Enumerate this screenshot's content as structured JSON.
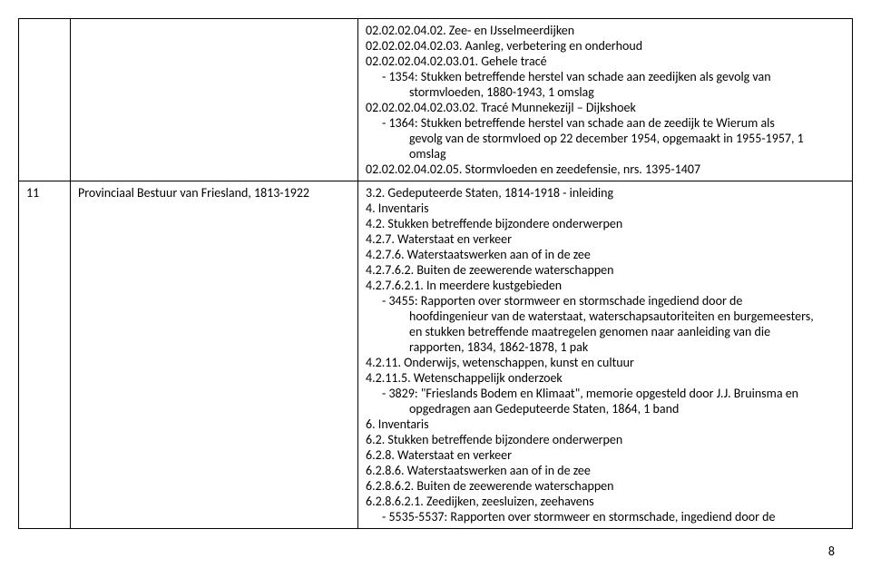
{
  "rows": [
    {
      "num": "",
      "title": "",
      "lines": [
        {
          "cls": "",
          "text": "02.02.02.04.02. Zee- en IJsselmeerdijken"
        },
        {
          "cls": "",
          "text": "02.02.02.04.02.03. Aanleg, verbetering en onderhoud"
        },
        {
          "cls": "",
          "text": "02.02.02.04.02.03.01. Gehele tracé"
        },
        {
          "cls": "indent1 bullet",
          "text": "1354: Stukken betreffende herstel van schade aan zeedijken als gevolg van"
        },
        {
          "cls": "sub-indent",
          "text": "stormvloeden, 1880-1943, 1 omslag"
        },
        {
          "cls": "",
          "text": "02.02.02.04.02.03.02. Tracé Munnekezijl – Dijkshoek"
        },
        {
          "cls": "indent1 bullet",
          "text": "1364: Stukken betreffende herstel van schade aan de zeedijk te Wierum als"
        },
        {
          "cls": "sub-indent",
          "text": "gevolg van de stormvloed op 22 december 1954, opgemaakt in 1955-1957, 1"
        },
        {
          "cls": "sub-indent",
          "text": "omslag"
        },
        {
          "cls": "",
          "text": "02.02.02.04.02.05. Stormvloeden en zeedefensie, nrs. 1395-1407"
        }
      ]
    },
    {
      "num": "11",
      "title": "Provinciaal Bestuur van Friesland, 1813-1922",
      "lines": [
        {
          "cls": "",
          "text": "3.2. Gedeputeerde Staten, 1814-1918 - inleiding"
        },
        {
          "cls": "",
          "text": "4. Inventaris"
        },
        {
          "cls": "",
          "text": "4.2. Stukken betreffende bijzondere onderwerpen"
        },
        {
          "cls": "",
          "text": "4.2.7. Waterstaat en verkeer"
        },
        {
          "cls": "",
          "text": "4.2.7.6. Waterstaatswerken aan of in de zee"
        },
        {
          "cls": "",
          "text": "4.2.7.6.2. Buiten de zeewerende waterschappen"
        },
        {
          "cls": "",
          "text": "4.2.7.6.2.1. In meerdere kustgebieden"
        },
        {
          "cls": "indent1 bullet",
          "text": "3455: Rapporten over stormweer en stormschade ingediend door de"
        },
        {
          "cls": "sub-indent",
          "text": "hoofdingenieur van de waterstaat, waterschapsautoriteiten en burgemeesters,"
        },
        {
          "cls": "sub-indent",
          "text": "en stukken betreffende maatregelen genomen naar aanleiding van die"
        },
        {
          "cls": "sub-indent",
          "text": "rapporten, 1834, 1862-1878, 1 pak"
        },
        {
          "cls": "",
          "text": "4.2.11. Onderwijs, wetenschappen, kunst en cultuur"
        },
        {
          "cls": "",
          "text": "4.2.11.5.  Wetenschappelijk onderzoek"
        },
        {
          "cls": "indent1 bullet",
          "text": "3829: \"Frieslands Bodem en Klimaat\", memorie opgesteld door J.J. Bruinsma en"
        },
        {
          "cls": "sub-indent",
          "text": "opgedragen aan Gedeputeerde Staten, 1864, 1 band"
        },
        {
          "cls": "",
          "text": "6. Inventaris"
        },
        {
          "cls": "",
          "text": "6.2. Stukken betreffende bijzondere onderwerpen"
        },
        {
          "cls": "",
          "text": "6.2.8. Waterstaat en verkeer"
        },
        {
          "cls": "",
          "text": "6.2.8.6. Waterstaatswerken aan of in de zee"
        },
        {
          "cls": "",
          "text": "6.2.8.6.2. Buiten de zeewerende waterschappen"
        },
        {
          "cls": "",
          "text": "6.2.8.6.2.1. Zeedijken, zeesluizen, zeehavens"
        },
        {
          "cls": "indent1 bullet",
          "text": "5535-5537: Rapporten over stormweer en stormschade, ingediend door de"
        }
      ]
    }
  ],
  "page_number": "8"
}
